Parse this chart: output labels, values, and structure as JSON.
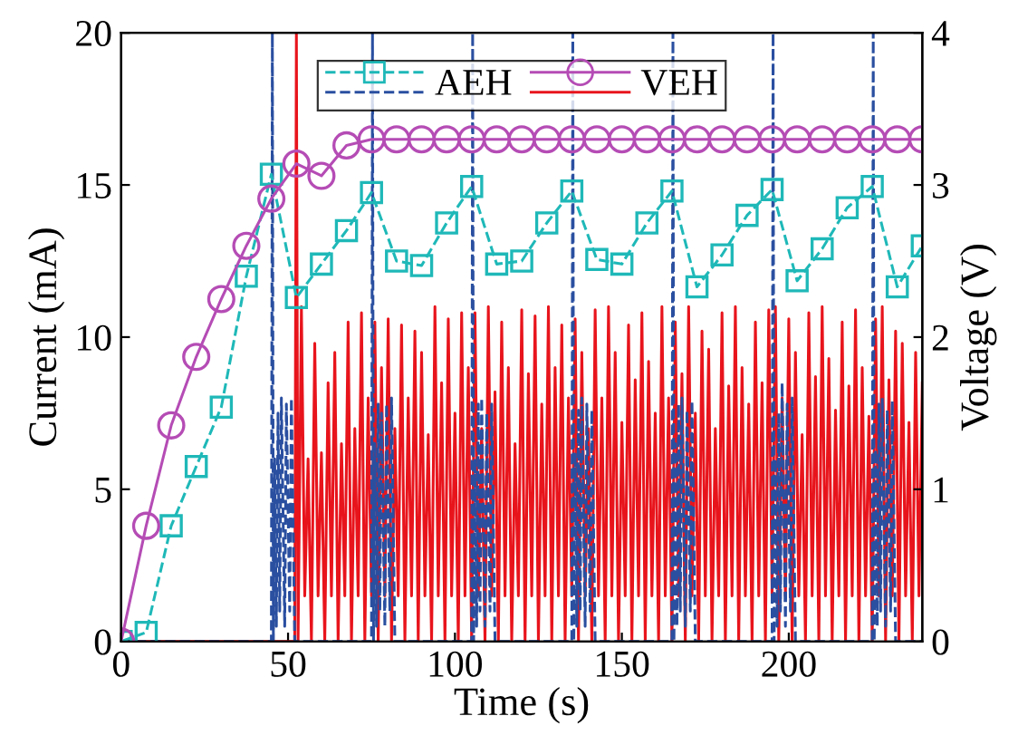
{
  "chart_data": {
    "type": "line",
    "xlabel": "Time (s)",
    "ylabel": "Current (mA)",
    "y2label": "Voltage (V)",
    "xlim": [
      0,
      240
    ],
    "xticks": [
      0,
      50,
      100,
      150,
      200
    ],
    "ylim": [
      0,
      20
    ],
    "yticks": [
      0,
      5,
      10,
      15,
      20
    ],
    "y2lim": [
      0,
      4
    ],
    "y2ticks": [
      0,
      1,
      2,
      3,
      4
    ],
    "legend": "top",
    "grid": false,
    "series": [
      {
        "color": "#e8141c",
        "line_style": "solid",
        "marker": "none",
        "x": [
          0,
          52,
          52.5,
          53,
          54,
          55,
          56,
          57,
          58,
          59,
          60,
          61,
          62,
          63,
          64,
          65,
          66,
          67,
          68,
          69,
          70,
          71,
          72,
          73,
          74,
          75,
          76,
          77,
          78,
          79,
          80,
          81,
          82,
          83,
          84,
          85,
          86,
          87,
          88,
          89,
          90,
          91,
          92,
          93,
          94,
          95,
          96,
          97,
          98,
          99,
          100,
          101,
          102,
          103,
          104,
          105,
          106,
          107,
          108,
          109,
          110,
          111,
          112,
          113,
          114,
          115,
          116,
          117,
          118,
          119,
          120,
          121,
          122,
          123,
          124,
          125,
          126,
          127,
          128,
          129,
          130,
          131,
          132,
          133,
          134,
          135,
          136,
          137,
          138,
          139,
          140,
          141,
          142,
          143,
          144,
          145,
          146,
          147,
          148,
          149,
          150,
          151,
          152,
          153,
          154,
          155,
          156,
          157,
          158,
          159,
          160,
          161,
          162,
          163,
          164,
          165,
          166,
          167,
          168,
          169,
          170,
          171,
          172,
          173,
          174,
          175,
          176,
          177,
          178,
          179,
          180,
          181,
          182,
          183,
          184,
          185,
          186,
          187,
          188,
          189,
          190,
          191,
          192,
          193,
          194,
          195,
          196,
          197,
          198,
          199,
          200,
          201,
          202,
          203,
          204,
          205,
          206,
          207,
          208,
          209,
          210,
          211,
          212,
          213,
          214,
          215,
          216,
          217,
          218,
          219,
          220,
          221,
          222,
          223,
          224,
          225,
          226,
          227,
          228,
          229,
          230,
          231,
          232,
          233,
          234,
          235,
          236,
          237,
          238,
          239,
          240
        ],
        "values": [
          0,
          0,
          20,
          0,
          11,
          1.5,
          6,
          0,
          9.8,
          1.5,
          6.2,
          0,
          8.5,
          1.5,
          9.5,
          0,
          6.5,
          1.5,
          10.5,
          0,
          7,
          1.5,
          10.8,
          0,
          8,
          1.5,
          10.5,
          0,
          9,
          1.5,
          10.6,
          0,
          7,
          1.5,
          10.4,
          0,
          8,
          1.5,
          10.2,
          0,
          9.5,
          1.5,
          6.8,
          0,
          11,
          1.5,
          8.5,
          0,
          10.6,
          1.5,
          7.5,
          0,
          10.8,
          1.5,
          9,
          0,
          10.8,
          1.5,
          7,
          0,
          11,
          1.5,
          8.2,
          0,
          10.5,
          1.5,
          9,
          0,
          6.5,
          1.5,
          10.9,
          0,
          8.8,
          1.5,
          10.7,
          0,
          7.8,
          1.5,
          11,
          0,
          9,
          1.5,
          10.4,
          0,
          8,
          1.5,
          10.6,
          0,
          9.5,
          1.5,
          7,
          0,
          10.9,
          1.5,
          8,
          0,
          11,
          1.5,
          9.5,
          0,
          7.2,
          1.5,
          10.4,
          0,
          8.6,
          1.5,
          10.8,
          0,
          9.2,
          1.5,
          7.5,
          0,
          11,
          1.5,
          8,
          0,
          10.5,
          1.5,
          8.8,
          0,
          11,
          1.5,
          7.5,
          0,
          10.2,
          1.5,
          9.6,
          0,
          7,
          1.5,
          10.8,
          0,
          8.4,
          1.5,
          11,
          0,
          9,
          1.5,
          7.8,
          0,
          10.5,
          1.5,
          8.5,
          0,
          10.9,
          1.5,
          11,
          0,
          8,
          1.5,
          10.6,
          0,
          9.5,
          1.5,
          6.8,
          0,
          10.8,
          1.5,
          8.7,
          0,
          11,
          1.5,
          9.3,
          0,
          7.6,
          1.5,
          10.5,
          0,
          8.4,
          1.5,
          10.9,
          0,
          9,
          1.5,
          7.4,
          0,
          10.6,
          1.5,
          11,
          0,
          8.6,
          1.5,
          10.2,
          0,
          9.8,
          1.5,
          7.2,
          0,
          9.5,
          1.5,
          8.5
        ]
      },
      {
        "color": "#2a4fa0",
        "line_style": "dashed",
        "marker": "none",
        "x": [
          0,
          45,
          45.3,
          45.6,
          46,
          46.5,
          47,
          47.5,
          48,
          49,
          49.5,
          50.5,
          51,
          52,
          75,
          75.3,
          75.6,
          76,
          76.5,
          77,
          77.5,
          78,
          79,
          79.5,
          80.5,
          81,
          82,
          105,
          105.3,
          105.6,
          106,
          106.5,
          107,
          107.5,
          108,
          109,
          109.5,
          110.5,
          111,
          112,
          135,
          135.3,
          135.6,
          136,
          136.5,
          137,
          137.5,
          138,
          139,
          139.5,
          140.5,
          141,
          142,
          165,
          165.3,
          165.6,
          166,
          166.5,
          167,
          167.5,
          168,
          169,
          169.5,
          170.5,
          171,
          172,
          195,
          195.3,
          195.6,
          196,
          196.5,
          197,
          197.5,
          198,
          199,
          199.5,
          200.5,
          201,
          202,
          225,
          225.3,
          225.6,
          226,
          226.5,
          227,
          227.5,
          228,
          229,
          229.5,
          230.5,
          231,
          232,
          240
        ],
        "values": [
          0,
          0,
          20,
          0,
          6,
          0.5,
          7.5,
          1,
          8,
          0.5,
          7.8,
          1,
          8,
          0,
          0,
          20,
          0,
          6.5,
          0.5,
          7.8,
          1,
          7.5,
          0.5,
          7.8,
          1,
          8,
          0,
          0,
          20,
          0,
          6,
          0.5,
          7.8,
          1,
          8,
          0.5,
          7.5,
          1,
          7.8,
          0,
          0,
          20,
          0,
          6.2,
          0.5,
          7.6,
          1,
          8,
          0.5,
          7.8,
          1,
          7.6,
          0,
          0,
          20,
          0,
          6.5,
          0.5,
          7.8,
          1,
          8,
          0.5,
          7.6,
          1,
          7.9,
          0,
          0,
          20,
          0,
          6,
          0.5,
          7.5,
          1,
          8.5,
          0.5,
          7.8,
          1,
          8,
          0,
          0,
          20,
          0,
          6.3,
          0.5,
          7.8,
          1,
          8,
          0.5,
          7.6,
          1,
          7.9,
          0,
          0
        ]
      },
      {
        "name": "AEH",
        "axis": "y2",
        "color": "#1fb8b8",
        "line_style": "dashed",
        "marker": "square",
        "x": [
          0,
          7.5,
          15,
          22.5,
          30,
          37.5,
          45,
          52.5,
          60,
          67.5,
          75,
          82.5,
          90,
          97.5,
          105,
          112.5,
          120,
          127.5,
          135,
          142.5,
          150,
          157.5,
          165,
          172.5,
          180,
          187.5,
          195,
          202.5,
          210,
          217.5,
          225,
          232.5,
          240
        ],
        "values": [
          0,
          0.06,
          0.76,
          1.15,
          1.54,
          2.4,
          3.07,
          2.26,
          2.48,
          2.7,
          2.95,
          2.5,
          2.47,
          2.75,
          2.99,
          2.48,
          2.5,
          2.75,
          2.96,
          2.51,
          2.48,
          2.75,
          2.96,
          2.33,
          2.54,
          2.8,
          2.97,
          2.37,
          2.58,
          2.85,
          2.99,
          2.33,
          2.6
        ]
      },
      {
        "name": "VEH",
        "axis": "y2",
        "color": "#b54cb5",
        "line_style": "solid",
        "marker": "circle",
        "x": [
          0,
          7.5,
          15,
          22.5,
          30,
          37.5,
          45,
          52.5,
          60,
          67.5,
          75,
          82.5,
          90,
          97.5,
          105,
          112.5,
          120,
          127.5,
          135,
          142.5,
          150,
          157.5,
          165,
          172.5,
          180,
          187.5,
          195,
          202.5,
          210,
          217.5,
          225,
          232.5,
          240
        ],
        "values": [
          0,
          0.76,
          1.42,
          1.87,
          2.25,
          2.6,
          2.91,
          3.14,
          3.06,
          3.26,
          3.3,
          3.3,
          3.3,
          3.3,
          3.3,
          3.3,
          3.3,
          3.3,
          3.3,
          3.3,
          3.3,
          3.3,
          3.3,
          3.3,
          3.3,
          3.3,
          3.3,
          3.3,
          3.3,
          3.3,
          3.3,
          3.3,
          3.3
        ]
      }
    ]
  }
}
